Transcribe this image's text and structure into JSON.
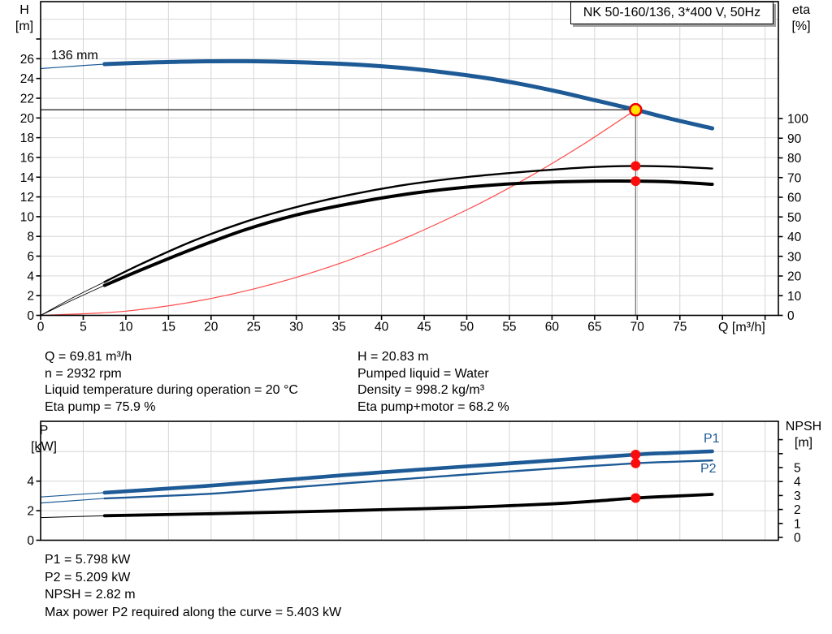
{
  "title_box": {
    "text": "NK 50-160/136, 3*400 V, 50Hz"
  },
  "top_chart_labels": {
    "left_axis": [
      "H",
      "[m]"
    ],
    "right_axis": [
      "eta",
      "[%]"
    ],
    "x_axis": "Q [m³/h]",
    "impeller": "136 mm"
  },
  "bottom_chart_labels": {
    "left_axis": [
      "P",
      "[kW]"
    ],
    "right_axis": [
      "NPSH",
      "[m]"
    ],
    "p1": "P1",
    "p2": "P2"
  },
  "info_top_left": [
    "Q = 69.81 m³/h",
    "n = 2932 rpm",
    "Liquid temperature during operation = 20 °C",
    "Eta pump = 75.9 %"
  ],
  "info_top_right": [
    "H = 20.83 m",
    "Pumped liquid = Water",
    "Density = 998.2 kg/m³",
    "Eta pump+motor = 68.2 %"
  ],
  "info_bottom": [
    "P1 = 5.798 kW",
    "P2 = 5.209 kW",
    "NPSH = 2.82 m",
    "Max power P2 required along the curve = 5.403 kW"
  ],
  "colors": {
    "curve_blue": "#1d5a96",
    "curve_black": "#000000",
    "system_curve_red": "#ff4a4a",
    "marker_red": "#fb0d0d",
    "op_point_fill": "#ffe500",
    "op_point_ring": "#f00000",
    "grid": "#d6d6d6",
    "axis": "#000000",
    "duty_flow_line": "#6e6e6e",
    "box_shadow": "#9e9e9e"
  },
  "chart_data": [
    {
      "id": "qh",
      "type": "line",
      "title": "NK 50-160/136, 3*400 V, 50Hz",
      "xlabel": "Q [m³/h]",
      "ylabel_left": "H [m]",
      "ylabel_right": "eta [%]",
      "xlim": [
        0,
        86.5
      ],
      "ylim_left": [
        0,
        31.8
      ],
      "ylim_right": [
        0,
        100
      ],
      "x_grid": [
        5,
        10,
        15,
        20,
        25,
        30,
        35,
        40,
        45,
        50,
        55,
        60,
        65,
        70,
        75,
        80,
        85
      ],
      "h_grid": [
        2,
        4,
        6,
        8,
        10,
        12,
        14,
        16,
        18,
        20,
        22,
        24,
        26,
        28,
        30
      ],
      "x_ticks": [
        0,
        5,
        10,
        15,
        20,
        25,
        30,
        35,
        40,
        45,
        50,
        55,
        60,
        65,
        70,
        75,
        80,
        85
      ],
      "x_tick_labels": [
        0,
        5,
        10,
        15,
        20,
        25,
        30,
        35,
        40,
        45,
        50,
        55,
        60,
        65,
        70,
        75
      ],
      "left_ticks": [
        0,
        2,
        4,
        6,
        8,
        10,
        12,
        14,
        16,
        18,
        20,
        22,
        24,
        26,
        28
      ],
      "left_tick_labels": [
        0,
        2,
        4,
        6,
        8,
        10,
        12,
        14,
        16,
        18,
        20,
        22,
        24,
        26
      ],
      "right_ticks": [
        0,
        10,
        20,
        30,
        40,
        50,
        60,
        70,
        80,
        90,
        100
      ],
      "right_tick_labels": [
        0,
        10,
        20,
        30,
        40,
        50,
        60,
        70,
        80,
        90,
        100
      ],
      "curve_label": "136 mm",
      "series": [
        {
          "name": "system-curve",
          "axis": "left",
          "color_key": "system_curve_red",
          "thin_width": 1.2,
          "thin": [
            [
              0,
              0
            ],
            [
              10,
              0.43
            ],
            [
              20,
              1.71
            ],
            [
              30,
              3.85
            ],
            [
              40,
              6.84
            ],
            [
              50,
              10.69
            ],
            [
              57.5,
              14.13
            ],
            [
              63.5,
              17.24
            ],
            [
              69.81,
              20.83
            ]
          ]
        },
        {
          "name": "eta-pump",
          "axis": "right",
          "color_key": "curve_black",
          "thin_width": 0.9,
          "thick_width": 2.4,
          "thin": [
            [
              0,
              0
            ],
            [
              4,
              9.5
            ],
            [
              7.5,
              17
            ]
          ],
          "thick": [
            [
              7.5,
              17
            ],
            [
              12,
              26.5
            ],
            [
              18,
              38
            ],
            [
              24,
              47.5
            ],
            [
              30,
              55
            ],
            [
              36,
              61
            ],
            [
              42,
              65.8
            ],
            [
              48,
              69.3
            ],
            [
              54,
              71.9
            ],
            [
              60,
              74
            ],
            [
              65,
              75.4
            ],
            [
              69.81,
              75.9
            ],
            [
              74,
              75.6
            ],
            [
              78.8,
              74.6
            ]
          ]
        },
        {
          "name": "eta-pump-motor",
          "axis": "right",
          "color_key": "curve_black",
          "thin_width": 0.9,
          "thick_width": 4,
          "thin": [
            [
              0,
              0
            ],
            [
              4,
              8.3
            ],
            [
              7.5,
              15.2
            ]
          ],
          "thick": [
            [
              7.5,
              15.2
            ],
            [
              12,
              23.5
            ],
            [
              18,
              34
            ],
            [
              24,
              43.5
            ],
            [
              30,
              51
            ],
            [
              36,
              56.5
            ],
            [
              42,
              61
            ],
            [
              48,
              64.3
            ],
            [
              54,
              66.5
            ],
            [
              60,
              67.7
            ],
            [
              65,
              68.2
            ],
            [
              69.81,
              68.2
            ],
            [
              74,
              67.8
            ],
            [
              78.8,
              66.6
            ]
          ]
        },
        {
          "name": "head-curve-136mm",
          "axis": "left",
          "color_key": "curve_blue",
          "thin_width": 1.2,
          "thick_width": 5,
          "thin": [
            [
              0,
              25.0
            ],
            [
              4,
              25.25
            ],
            [
              7.5,
              25.45
            ]
          ],
          "thick": [
            [
              7.5,
              25.45
            ],
            [
              12,
              25.6
            ],
            [
              18,
              25.72
            ],
            [
              24,
              25.75
            ],
            [
              30,
              25.65
            ],
            [
              36,
              25.45
            ],
            [
              42,
              25.1
            ],
            [
              48,
              24.55
            ],
            [
              54,
              23.8
            ],
            [
              60,
              22.8
            ],
            [
              65,
              21.8
            ],
            [
              69.81,
              20.83
            ],
            [
              74,
              19.9
            ],
            [
              78.8,
              18.95
            ]
          ]
        }
      ],
      "operating_point": {
        "q": 69.81,
        "h": 20.83
      },
      "markers": [
        {
          "name": "eta-pump-duty-marker",
          "q": 69.81,
          "value": 75.9,
          "axis": "right"
        },
        {
          "name": "eta-pump-motor-duty-marker",
          "q": 69.81,
          "value": 68.2,
          "axis": "right"
        }
      ]
    },
    {
      "id": "power-npsh",
      "type": "line",
      "xlabel": "",
      "ylabel_left": "P [kW]",
      "ylabel_right": "NPSH [m]",
      "xlim": [
        0,
        86.5
      ],
      "ylim_left": [
        0,
        8
      ],
      "ylim_right": [
        0,
        8.5
      ],
      "x_grid": [
        5,
        10,
        15,
        20,
        25,
        30,
        35,
        40,
        45,
        50,
        55,
        60,
        65,
        70,
        75,
        80,
        85
      ],
      "p_grid": [
        2,
        4,
        6
      ],
      "left_ticks": [
        0,
        2,
        4,
        6
      ],
      "left_tick_labels": [
        0,
        2,
        4
      ],
      "right_ticks": [
        0,
        1,
        2,
        3,
        4,
        5,
        6,
        7
      ],
      "right_tick_labels": [
        0,
        1,
        2,
        3,
        4,
        5
      ],
      "series": [
        {
          "name": "p1-power",
          "label": "P1",
          "axis": "left",
          "color_key": "curve_blue",
          "thin_width": 1.2,
          "thick_width": 4.6,
          "thin": [
            [
              0,
              2.93
            ],
            [
              7.5,
              3.22
            ]
          ],
          "thick": [
            [
              7.5,
              3.22
            ],
            [
              20,
              3.7
            ],
            [
              30,
              4.15
            ],
            [
              40,
              4.6
            ],
            [
              50,
              5.0
            ],
            [
              60,
              5.4
            ],
            [
              69.81,
              5.798
            ],
            [
              74,
              5.91
            ],
            [
              78.8,
              6.02
            ]
          ]
        },
        {
          "name": "p2-power",
          "label": "P2",
          "axis": "left",
          "color_key": "curve_blue",
          "thin_width": 1.2,
          "thick_width": 2.4,
          "thin": [
            [
              0,
              2.52
            ],
            [
              7.5,
              2.83
            ]
          ],
          "thick": [
            [
              7.5,
              2.83
            ],
            [
              20,
              3.15
            ],
            [
              30,
              3.6
            ],
            [
              40,
              4.03
            ],
            [
              50,
              4.45
            ],
            [
              60,
              4.85
            ],
            [
              69.81,
              5.209
            ],
            [
              74,
              5.31
            ],
            [
              78.8,
              5.4
            ]
          ]
        },
        {
          "name": "npsh-curve",
          "axis": "right",
          "color_key": "curve_black",
          "thin_width": 1,
          "thick_width": 3.8,
          "thin": [
            [
              0,
              1.42
            ],
            [
              7.5,
              1.55
            ]
          ],
          "thick": [
            [
              7.5,
              1.55
            ],
            [
              20,
              1.7
            ],
            [
              30,
              1.83
            ],
            [
              40,
              1.98
            ],
            [
              50,
              2.15
            ],
            [
              60,
              2.4
            ],
            [
              65,
              2.6
            ],
            [
              69.81,
              2.82
            ],
            [
              74,
              2.95
            ],
            [
              78.8,
              3.08
            ]
          ]
        }
      ],
      "markers": [
        {
          "name": "p1-duty-marker",
          "q": 69.81,
          "value": 5.798,
          "axis": "left"
        },
        {
          "name": "p2-duty-marker",
          "q": 69.81,
          "value": 5.209,
          "axis": "left"
        },
        {
          "name": "npsh-duty-marker",
          "q": 69.81,
          "value": 2.82,
          "axis": "right"
        }
      ]
    }
  ]
}
